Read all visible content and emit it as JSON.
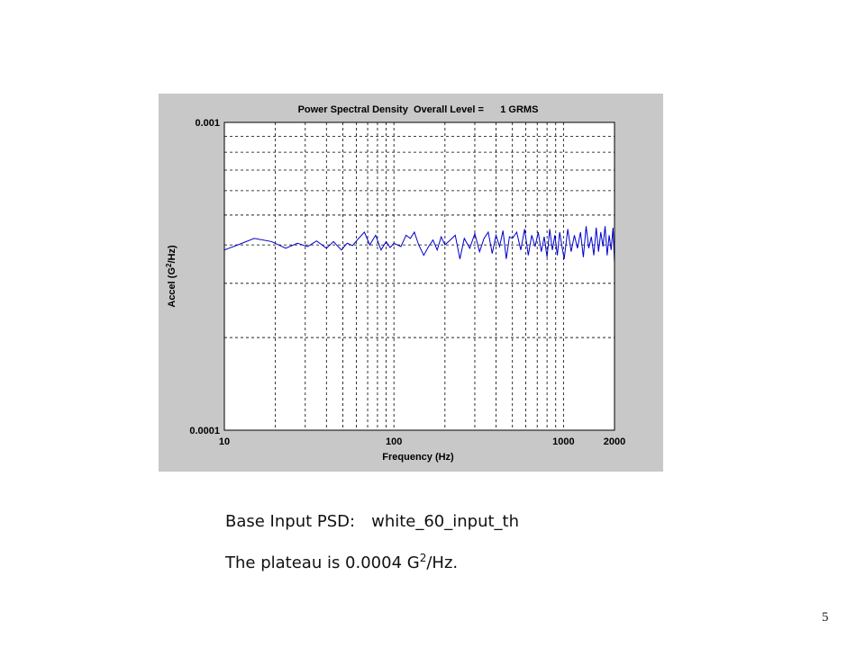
{
  "chart_data": {
    "type": "line",
    "title": "Power Spectral Density  Overall Level =      1 GRMS",
    "xlabel": "Frequency (Hz)",
    "ylabel": {
      "prefix": "Accel (G",
      "sup": "2",
      "suffix": "/Hz)"
    },
    "xscale": "log",
    "yscale": "log",
    "xlim": [
      10,
      2000
    ],
    "ylim": [
      0.0001,
      0.001
    ],
    "xticks": [
      10,
      100,
      1000,
      2000
    ],
    "xtick_labels": [
      "10",
      "100",
      "1000",
      "2000"
    ],
    "yticks": [
      0.0001,
      0.001
    ],
    "ytick_labels": [
      "0.0001",
      "0.001"
    ],
    "grid": true,
    "legend": "none",
    "series": [
      {
        "color": "#0000cc",
        "plateau": 0.0004,
        "x": [
          10,
          12,
          15,
          19,
          23,
          27,
          31,
          35,
          40,
          44,
          49,
          53,
          57,
          62,
          67,
          72,
          78,
          84,
          90,
          95,
          100,
          110,
          118,
          125,
          132,
          140,
          150,
          160,
          170,
          180,
          190,
          200,
          215,
          230,
          245,
          260,
          280,
          300,
          320,
          340,
          360,
          380,
          400,
          420,
          440,
          460,
          480,
          500,
          530,
          560,
          590,
          620,
          650,
          680,
          710,
          740,
          770,
          800,
          830,
          860,
          890,
          920,
          950,
          980,
          1010,
          1060,
          1110,
          1160,
          1210,
          1260,
          1310,
          1360,
          1410,
          1460,
          1510,
          1560,
          1610,
          1660,
          1710,
          1760,
          1810,
          1860,
          1910,
          1960,
          2000
        ],
        "y": [
          0.000385,
          0.0004,
          0.00042,
          0.00041,
          0.00039,
          0.000405,
          0.000395,
          0.000412,
          0.00039,
          0.00041,
          0.000385,
          0.000405,
          0.000398,
          0.00042,
          0.00044,
          0.0004,
          0.00043,
          0.000385,
          0.00041,
          0.000392,
          0.000405,
          0.000395,
          0.00043,
          0.00042,
          0.00044,
          0.0004,
          0.00037,
          0.000395,
          0.000415,
          0.000385,
          0.000425,
          0.0004,
          0.000415,
          0.00043,
          0.00036,
          0.00042,
          0.00039,
          0.000435,
          0.00038,
          0.00042,
          0.00044,
          0.000375,
          0.00043,
          0.000395,
          0.000445,
          0.00036,
          0.000425,
          0.00042,
          0.00044,
          0.000385,
          0.00045,
          0.00037,
          0.00043,
          0.000395,
          0.00044,
          0.00038,
          0.000425,
          0.000365,
          0.00045,
          0.000385,
          0.00043,
          0.00037,
          0.00044,
          0.000395,
          0.00036,
          0.00045,
          0.00038,
          0.00043,
          0.00039,
          0.00044,
          0.000365,
          0.00046,
          0.00039,
          0.000425,
          0.00037,
          0.000455,
          0.00038,
          0.00044,
          0.000395,
          0.00046,
          0.00037,
          0.00043,
          0.000385,
          0.000455,
          0.00035
        ]
      }
    ]
  },
  "caption": {
    "line1_label": "Base Input PSD:",
    "line1_value": "white_60_input_th",
    "line2_prefix": "The plateau is 0.0004 G",
    "line2_sup": "2",
    "line2_suffix": "/Hz."
  },
  "slide_number": "5"
}
